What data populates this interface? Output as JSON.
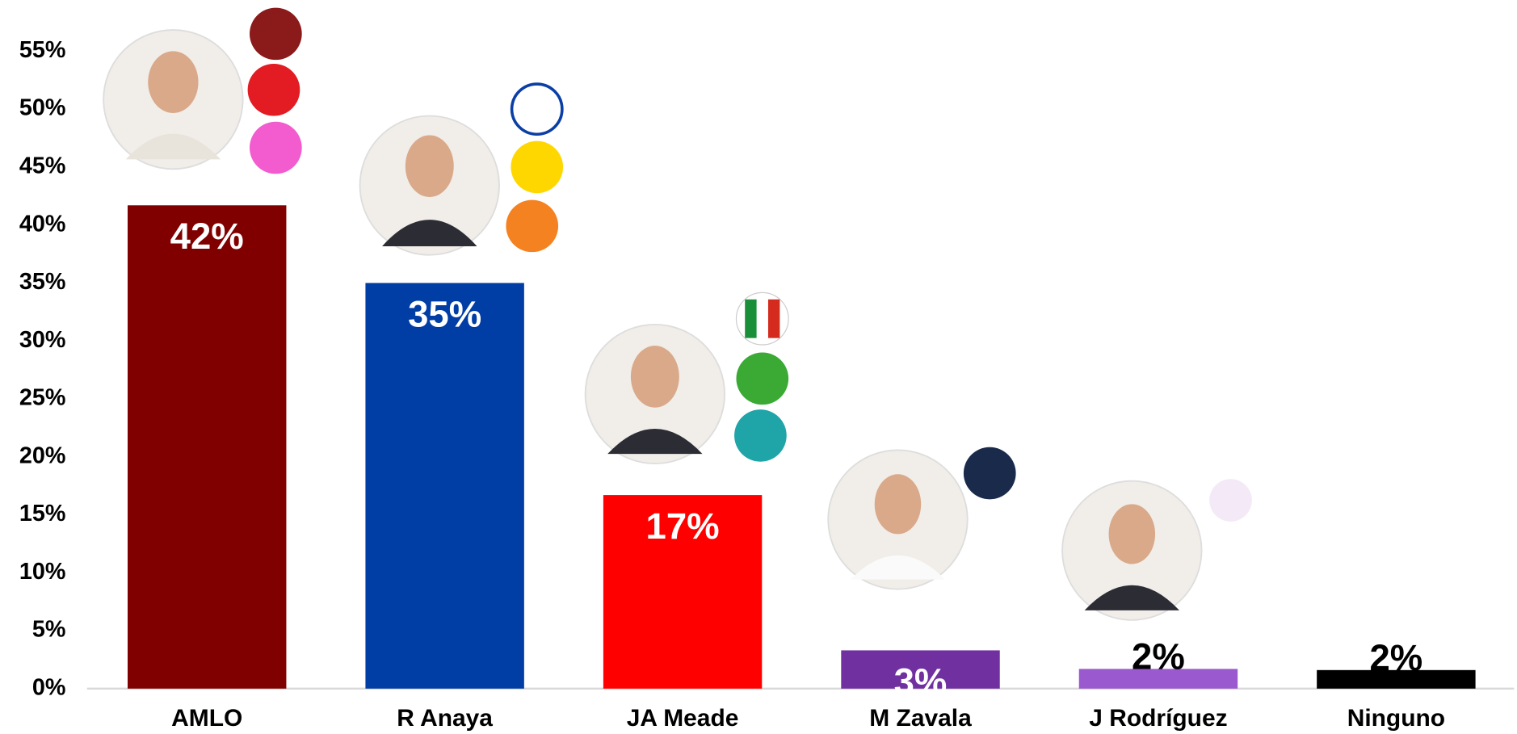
{
  "chart_data": {
    "type": "bar",
    "categories": [
      "AMLO",
      "R Anaya",
      "JA Meade",
      "M Zavala",
      "J Rodríguez",
      "Ninguno"
    ],
    "values": [
      41.7,
      35,
      16.7,
      3.3,
      1.7,
      1.6
    ],
    "value_labels": [
      "42%",
      "35%",
      "17%",
      "3%",
      "2%",
      "2%"
    ],
    "colors": [
      "#800000",
      "#003da5",
      "#ff0000",
      "#7030a0",
      "#9b59d0",
      "#000000"
    ],
    "ylim": [
      0,
      55
    ],
    "yticks": [
      {
        "value": 0,
        "label": "0%"
      },
      {
        "value": 5,
        "label": "5%"
      },
      {
        "value": 10,
        "label": "10%"
      },
      {
        "value": 15,
        "label": "15%"
      },
      {
        "value": 20,
        "label": "20%"
      },
      {
        "value": 25,
        "label": "25%"
      },
      {
        "value": 30,
        "label": "30%"
      },
      {
        "value": 35,
        "label": "35%"
      },
      {
        "value": 40,
        "label": "40%"
      },
      {
        "value": 45,
        "label": "45%"
      },
      {
        "value": 50,
        "label": "50%"
      },
      {
        "value": 55,
        "label": "55%"
      }
    ],
    "grid": false
  }
}
